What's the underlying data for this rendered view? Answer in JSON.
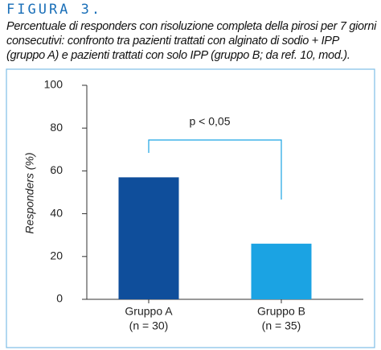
{
  "chart_data": {
    "type": "bar",
    "figure_label": "FIGURA 3.",
    "title": "Percentuale di responders con risoluzione completa della pirosi per 7 giorni consecutivi: confronto tra pazienti trattati con alginato di sodio + IPP (gruppo A) e pazienti trattati con solo IPP (gruppo B; da ref. 10, mod.).",
    "y_label": "Responders (%)",
    "annotation": "p < 0,05",
    "categories": [
      [
        "Gruppo A",
        "(n = 30)"
      ],
      [
        "Gruppo B",
        "(n = 35)"
      ]
    ],
    "values": [
      57,
      26
    ],
    "colors": [
      "#0f4e9b",
      "#1ba3e3"
    ],
    "ylim": [
      0,
      100
    ],
    "yticks": [
      0,
      20,
      40,
      60,
      80,
      100
    ],
    "grid": false
  }
}
